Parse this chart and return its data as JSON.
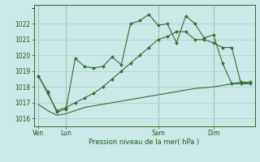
{
  "background_color": "#cce8e8",
  "grid_color": "#aacccc",
  "line_color": "#2d6e2d",
  "xlabel": "Pression niveau de la mer( hPa )",
  "ylim": [
    1015.5,
    1023.2
  ],
  "yticks": [
    1016,
    1017,
    1018,
    1019,
    1020,
    1021,
    1022
  ],
  "xtick_labels": [
    "Ven",
    "Lun",
    "Sam",
    "Dim"
  ],
  "series1_x": [
    0,
    1,
    2,
    3,
    4,
    5,
    6,
    7,
    8,
    9,
    10,
    11,
    12,
    13,
    14,
    15,
    16,
    17,
    18,
    19,
    20,
    21,
    22,
    23
  ],
  "series1_y": [
    1018.7,
    1017.7,
    1016.4,
    1016.6,
    1019.8,
    1019.3,
    1019.2,
    1019.3,
    1019.9,
    1019.4,
    1022.0,
    1022.2,
    1022.6,
    1021.9,
    1022.0,
    1020.8,
    1022.5,
    1022.0,
    1021.1,
    1021.3,
    1019.5,
    1018.2,
    1018.3,
    1018.3
  ],
  "series2_x": [
    0,
    1,
    2,
    3,
    4,
    5,
    6,
    7,
    8,
    9,
    10,
    11,
    12,
    13,
    14,
    15,
    16,
    17,
    18,
    19,
    20,
    21,
    22,
    23
  ],
  "series2_y": [
    1018.7,
    1017.6,
    1016.5,
    1016.7,
    1017.0,
    1017.3,
    1017.6,
    1018.0,
    1018.5,
    1019.0,
    1019.5,
    1020.0,
    1020.5,
    1021.0,
    1021.2,
    1021.5,
    1021.5,
    1021.0,
    1021.0,
    1020.8,
    1020.5,
    1020.5,
    1018.2,
    1018.2
  ],
  "series3_x": [
    0,
    1,
    2,
    3,
    4,
    5,
    6,
    7,
    8,
    9,
    10,
    11,
    12,
    13,
    14,
    15,
    16,
    17,
    18,
    19,
    20,
    21,
    22,
    23
  ],
  "series3_y": [
    1016.9,
    1016.5,
    1016.2,
    1016.3,
    1016.5,
    1016.7,
    1016.8,
    1016.9,
    1017.0,
    1017.1,
    1017.2,
    1017.3,
    1017.4,
    1017.5,
    1017.6,
    1017.7,
    1017.8,
    1017.9,
    1017.95,
    1018.0,
    1018.1,
    1018.2,
    1018.2,
    1018.3
  ],
  "xtick_x": [
    0,
    3,
    13,
    19
  ],
  "vline_x": [
    0,
    3,
    13,
    19
  ],
  "xlim": [
    -0.5,
    23.5
  ]
}
